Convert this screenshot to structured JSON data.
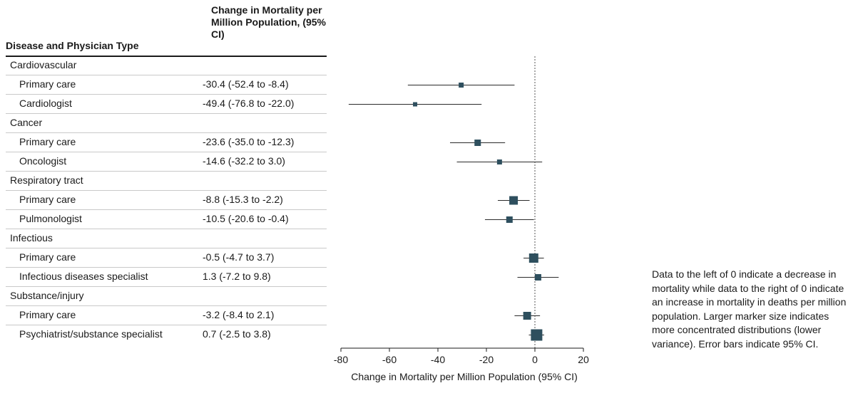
{
  "table": {
    "col1_header": "Disease and Physician Type",
    "col2_header": "Change in Mortality per Million Population, (95% CI)"
  },
  "rows": [
    {
      "kind": "group",
      "label": "Cardiovascular",
      "estimate": ""
    },
    {
      "kind": "item",
      "label": "Primary care",
      "estimate": "-30.4 (-52.4 to -8.4)"
    },
    {
      "kind": "item",
      "label": "Cardiologist",
      "estimate": "-49.4 (-76.8 to -22.0)"
    },
    {
      "kind": "group",
      "label": "Cancer",
      "estimate": ""
    },
    {
      "kind": "item",
      "label": "Primary care",
      "estimate": "-23.6 (-35.0 to -12.3)"
    },
    {
      "kind": "item",
      "label": "Oncologist",
      "estimate": "-14.6 (-32.2 to 3.0)"
    },
    {
      "kind": "group",
      "label": "Respiratory tract",
      "estimate": ""
    },
    {
      "kind": "item",
      "label": "Primary care",
      "estimate": "-8.8 (-15.3 to -2.2)"
    },
    {
      "kind": "item",
      "label": "Pulmonologist",
      "estimate": "-10.5 (-20.6 to -0.4)"
    },
    {
      "kind": "group",
      "label": "Infectious",
      "estimate": ""
    },
    {
      "kind": "item",
      "label": "Primary care",
      "estimate": "-0.5 (-4.7 to 3.7)"
    },
    {
      "kind": "item",
      "label": "Infectious diseases specialist",
      "estimate": "1.3 (-7.2 to 9.8)"
    },
    {
      "kind": "group",
      "label": "Substance/injury",
      "estimate": ""
    },
    {
      "kind": "item",
      "label": "Primary care",
      "estimate": "-3.2 (-8.4 to 2.1)"
    },
    {
      "kind": "item",
      "label": "Psychiatrist/substance specialist",
      "estimate": "0.7 (-2.5 to 3.8)"
    }
  ],
  "chart_data": {
    "type": "forest",
    "xlabel": "Change in Mortality per Million Population (95% CI)",
    "xlim": [
      -80,
      20
    ],
    "xticks": [
      -80,
      -60,
      -40,
      -20,
      0,
      20
    ],
    "reference_line": 0,
    "marker_color": "#2e4f5e",
    "points": [
      {
        "row": 1,
        "estimate": -30.4,
        "lower": -52.4,
        "upper": -8.4,
        "marker_size": 7
      },
      {
        "row": 2,
        "estimate": -49.4,
        "lower": -76.8,
        "upper": -22.0,
        "marker_size": 6
      },
      {
        "row": 4,
        "estimate": -23.6,
        "lower": -35.0,
        "upper": -12.3,
        "marker_size": 9
      },
      {
        "row": 5,
        "estimate": -14.6,
        "lower": -32.2,
        "upper": 3.0,
        "marker_size": 7
      },
      {
        "row": 7,
        "estimate": -8.8,
        "lower": -15.3,
        "upper": -2.2,
        "marker_size": 12
      },
      {
        "row": 8,
        "estimate": -10.5,
        "lower": -20.6,
        "upper": -0.4,
        "marker_size": 9
      },
      {
        "row": 10,
        "estimate": -0.5,
        "lower": -4.7,
        "upper": 3.7,
        "marker_size": 13
      },
      {
        "row": 11,
        "estimate": 1.3,
        "lower": -7.2,
        "upper": 9.8,
        "marker_size": 9
      },
      {
        "row": 13,
        "estimate": -3.2,
        "lower": -8.4,
        "upper": 2.1,
        "marker_size": 11
      },
      {
        "row": 14,
        "estimate": 0.7,
        "lower": -2.5,
        "upper": 3.8,
        "marker_size": 16
      }
    ]
  },
  "note": "Data to the left of 0 indicate a decrease in mortality while data to the right of 0 indicate an increase in mortality in deaths per million population. Larger marker size indicates more concentrated distributions (lower variance). Error bars indicate 95% CI."
}
